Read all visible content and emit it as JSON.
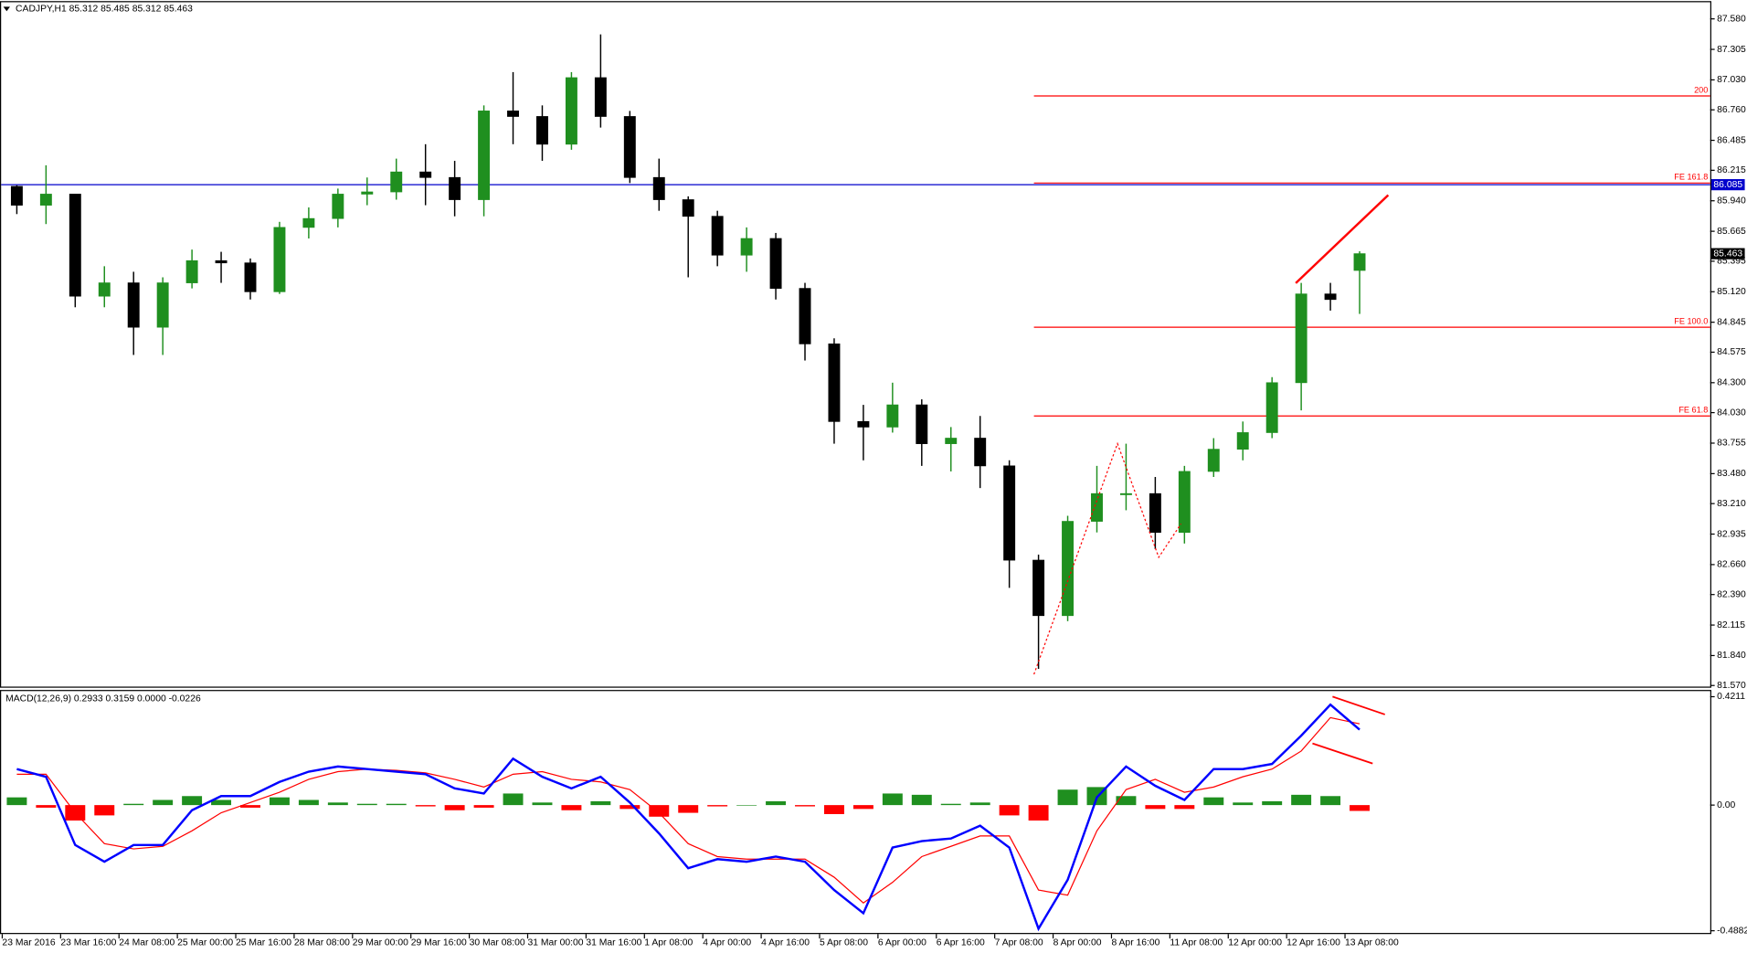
{
  "chart_data": [
    {
      "type": "candlestick",
      "title": "CADJPY,H1  85.312 85.485 85.312 85.463",
      "categories": [
        "23 Mar 2016",
        null,
        "23 Mar 16:00",
        null,
        "24 Mar 08:00",
        null,
        "25 Mar 00:00",
        null,
        "25 Mar 16:00",
        null,
        "28 Mar 08:00",
        null,
        "29 Mar 00:00",
        null,
        "29 Mar 16:00",
        null,
        "30 Mar 08:00",
        null,
        "31 Mar 00:00",
        null,
        "31 Mar 16:00",
        null,
        "1 Apr 08:00",
        null,
        "4 Apr 00:00",
        null,
        "4 Apr 16:00",
        null,
        "5 Apr 08:00",
        null,
        "6 Apr 00:00",
        null,
        "6 Apr 16:00",
        null,
        "7 Apr 08:00",
        null,
        "8 Apr 00:00",
        null,
        "8 Apr 16:00",
        null,
        "11 Apr 08:00",
        null,
        "12 Apr 00:00",
        null,
        "12 Apr 16:00",
        null,
        "13 Apr 08:00"
      ],
      "open": [
        86.07,
        85.9,
        86.0,
        85.08,
        85.2,
        84.8,
        85.2,
        85.4,
        85.38,
        85.12,
        85.7,
        85.78,
        86.0,
        86.02,
        86.2,
        86.15,
        85.95,
        86.75,
        86.7,
        86.45,
        87.05,
        86.7,
        86.15,
        85.95,
        85.8,
        85.45,
        85.6,
        85.15,
        84.65,
        83.95,
        83.9,
        84.1,
        83.75,
        83.8,
        83.55,
        82.7,
        82.2,
        83.05,
        83.3,
        83.3,
        82.95,
        83.5,
        83.7,
        83.85,
        84.3,
        85.1,
        85.312
      ],
      "high": [
        86.08,
        86.26,
        86.0,
        85.35,
        85.3,
        85.25,
        85.5,
        85.48,
        85.42,
        85.75,
        85.88,
        86.05,
        86.15,
        86.32,
        86.45,
        86.3,
        86.8,
        87.1,
        86.8,
        87.1,
        87.44,
        86.75,
        86.32,
        85.98,
        85.85,
        85.7,
        85.65,
        85.2,
        84.7,
        84.1,
        84.3,
        84.15,
        83.9,
        84.0,
        83.6,
        82.75,
        83.1,
        83.55,
        83.75,
        83.45,
        83.55,
        83.8,
        83.95,
        84.35,
        85.2,
        85.2,
        85.485
      ],
      "low": [
        85.82,
        85.73,
        84.98,
        84.98,
        84.55,
        84.55,
        85.15,
        85.2,
        85.05,
        85.1,
        85.6,
        85.7,
        85.9,
        85.95,
        85.9,
        85.8,
        85.8,
        86.45,
        86.3,
        86.4,
        86.6,
        86.1,
        85.85,
        85.25,
        85.35,
        85.3,
        85.05,
        84.5,
        83.75,
        83.6,
        83.85,
        83.55,
        83.5,
        83.35,
        82.45,
        81.72,
        82.15,
        82.95,
        83.15,
        82.8,
        82.85,
        83.45,
        83.6,
        83.8,
        84.05,
        84.95,
        84.92
      ],
      "close": [
        85.9,
        86.0,
        85.08,
        85.2,
        84.8,
        85.2,
        85.4,
        85.38,
        85.12,
        85.7,
        85.78,
        86.0,
        86.02,
        86.2,
        86.15,
        85.95,
        86.75,
        86.7,
        86.45,
        87.05,
        86.7,
        86.15,
        85.95,
        85.8,
        85.45,
        85.6,
        85.15,
        84.65,
        83.95,
        83.9,
        84.1,
        83.75,
        83.8,
        83.55,
        82.7,
        82.2,
        83.05,
        83.3,
        83.3,
        82.95,
        83.5,
        83.7,
        83.85,
        84.3,
        85.1,
        85.05,
        85.463
      ],
      "up_color": "#1f8f1f",
      "down_color": "#000000",
      "ylim": [
        81.56,
        87.73
      ],
      "yticks": [
        {
          "value": 81.57,
          "label": "81.570"
        },
        {
          "value": 81.84,
          "label": "81.840"
        },
        {
          "value": 82.115,
          "label": "82.115"
        },
        {
          "value": 82.39,
          "label": "82.390"
        },
        {
          "value": 82.66,
          "label": "82.660"
        },
        {
          "value": 82.935,
          "label": "82.935"
        },
        {
          "value": 83.21,
          "label": "83.210"
        },
        {
          "value": 83.48,
          "label": "83.480"
        },
        {
          "value": 83.755,
          "label": "83.755"
        },
        {
          "value": 84.03,
          "label": "84.030"
        },
        {
          "value": 84.3,
          "label": "84.300"
        },
        {
          "value": 84.575,
          "label": "84.575"
        },
        {
          "value": 84.845,
          "label": "84.845"
        },
        {
          "value": 85.12,
          "label": "85.120"
        },
        {
          "value": 85.395,
          "label": "85.395"
        },
        {
          "value": 85.665,
          "label": "85.665"
        },
        {
          "value": 85.94,
          "label": "85.940"
        },
        {
          "value": 86.215,
          "label": "86.215"
        },
        {
          "value": 86.485,
          "label": "86.485"
        },
        {
          "value": 86.76,
          "label": "86.760"
        },
        {
          "value": 87.03,
          "label": "87.030"
        },
        {
          "value": 87.305,
          "label": "87.305"
        },
        {
          "value": 87.58,
          "label": "87.580"
        }
      ],
      "levels": [
        {
          "label": "200",
          "value": 86.885
        },
        {
          "label": "FE 161.8",
          "value": 86.1
        },
        {
          "label": "FE 100.0",
          "value": 84.8
        },
        {
          "label": "FE 61.8",
          "value": 84.0
        }
      ],
      "level_color": "#ff0000",
      "price_line": {
        "value": 86.085,
        "color": "#0000cc"
      },
      "current_price": 85.463
    },
    {
      "type": "macd",
      "title": "MACD(12,26,9) 0.2933 0.3159 0.0000 -0.0226",
      "macd_line": {
        "color": "#0000ff",
        "values": [
          0.14,
          0.11,
          -0.155,
          -0.22,
          -0.155,
          -0.155,
          -0.02,
          0.035,
          0.035,
          0.09,
          0.13,
          0.15,
          0.14,
          0.13,
          0.12,
          0.065,
          0.045,
          0.18,
          0.11,
          0.065,
          0.11,
          0.01,
          -0.11,
          -0.245,
          -0.21,
          -0.22,
          -0.2,
          -0.22,
          -0.33,
          -0.42,
          -0.165,
          -0.14,
          -0.13,
          -0.08,
          -0.165,
          -0.48,
          -0.29,
          0.03,
          0.15,
          0.075,
          0.02,
          0.14,
          0.14,
          0.16,
          0.27,
          0.39,
          0.2933
        ]
      },
      "signal_line": {
        "color": "#ff0000",
        "values": [
          0.12,
          0.12,
          -0.03,
          -0.15,
          -0.17,
          -0.16,
          -0.1,
          -0.03,
          0.01,
          0.05,
          0.1,
          0.13,
          0.14,
          0.135,
          0.125,
          0.1,
          0.07,
          0.12,
          0.13,
          0.1,
          0.09,
          0.06,
          -0.03,
          -0.15,
          -0.2,
          -0.21,
          -0.21,
          -0.21,
          -0.28,
          -0.38,
          -0.3,
          -0.2,
          -0.16,
          -0.12,
          -0.12,
          -0.33,
          -0.35,
          -0.1,
          0.06,
          0.1,
          0.05,
          0.07,
          0.11,
          0.14,
          0.21,
          0.34,
          0.3159
        ]
      },
      "histogram": {
        "up_color": "#1f8f1f",
        "down_color": "#ff0000",
        "values": [
          0.03,
          -0.01,
          -0.06,
          -0.04,
          0.005,
          0.02,
          0.035,
          0.02,
          -0.01,
          0.03,
          0.02,
          0.01,
          0.005,
          0.005,
          -0.005,
          -0.02,
          -0.01,
          0.045,
          0.01,
          -0.02,
          0.015,
          -0.015,
          -0.045,
          -0.03,
          -0.005,
          0.0,
          0.015,
          -0.005,
          -0.035,
          -0.015,
          0.045,
          0.04,
          0.005,
          0.01,
          -0.04,
          -0.06,
          0.06,
          0.07,
          0.035,
          -0.015,
          -0.015,
          0.03,
          0.01,
          0.015,
          0.04,
          0.035,
          -0.0226
        ]
      },
      "ylim": [
        -0.501,
        0.443
      ],
      "yticks": [
        0.4211,
        {
          "value": 0,
          "label": "0.00"
        },
        -0.4882
      ]
    }
  ]
}
